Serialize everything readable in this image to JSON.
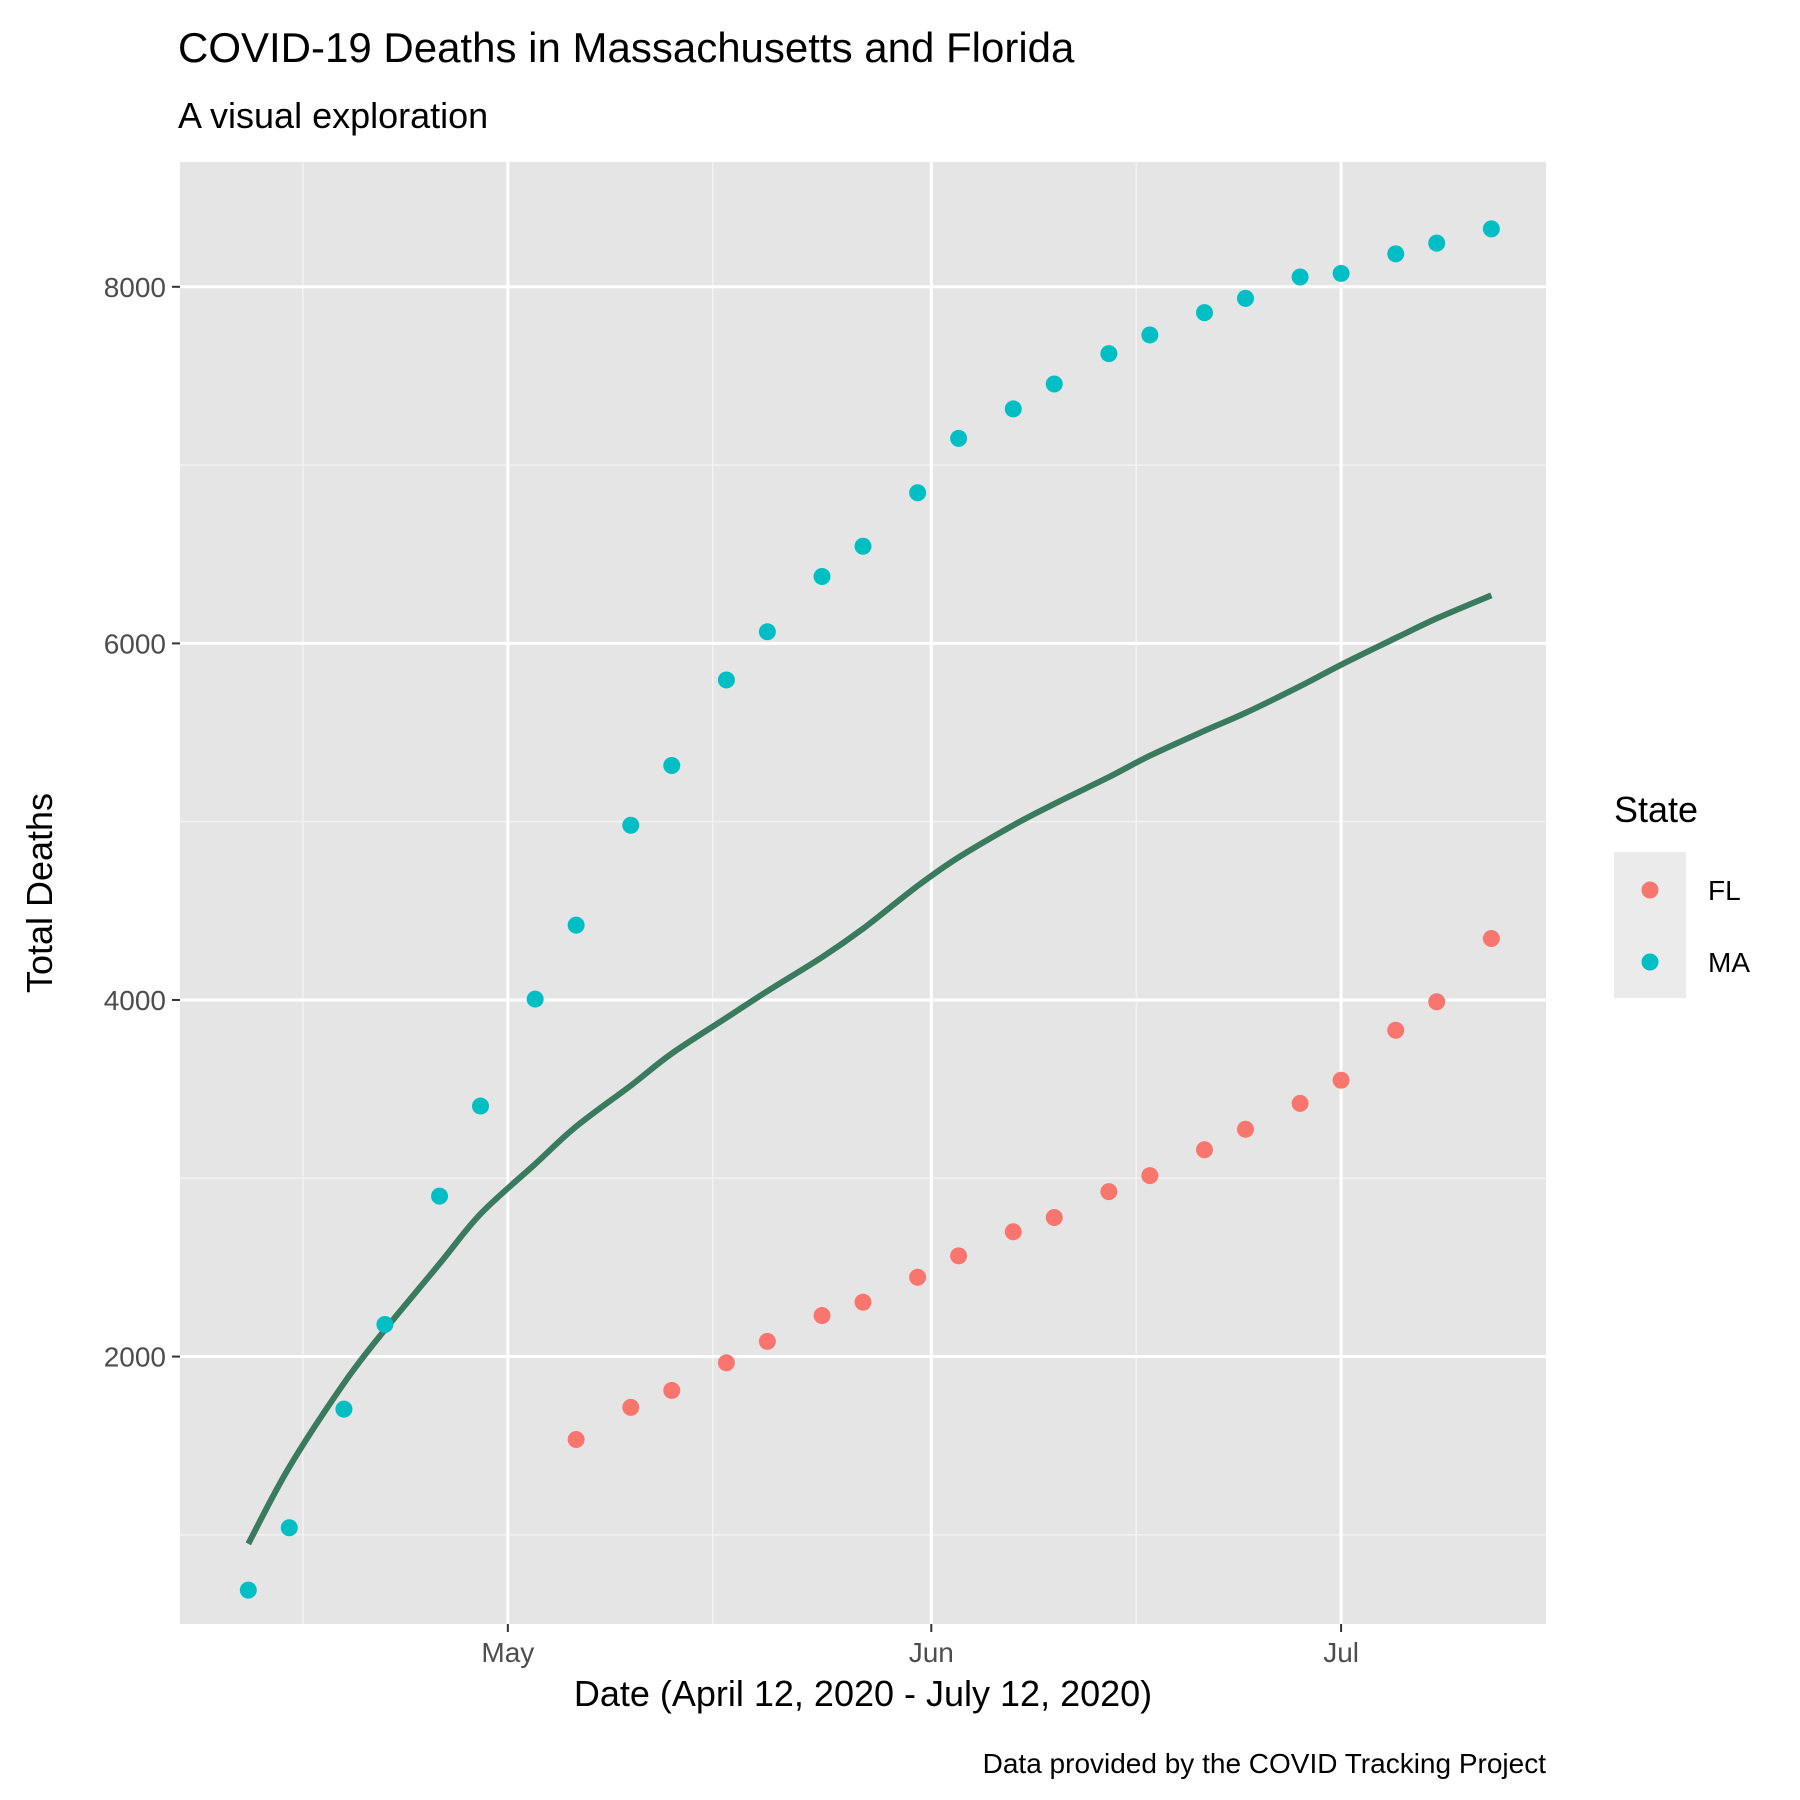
{
  "chart_data": {
    "type": "scatter",
    "title": "COVID-19 Deaths in Massachusetts and Florida",
    "subtitle": "A visual exploration",
    "xlabel": "Date (April 12, 2020 - July 12, 2020)",
    "ylabel": "Total Deaths",
    "caption": "Data provided by the COVID Tracking Project",
    "x_type": "date",
    "xlim": [
      "2020-04-07",
      "2020-07-16"
    ],
    "ylim": [
      500,
      8700
    ],
    "x_ticks": [
      {
        "date": "2020-05-01",
        "label": "May"
      },
      {
        "date": "2020-06-01",
        "label": "Jun"
      },
      {
        "date": "2020-07-01",
        "label": "Jul"
      }
    ],
    "x_minor_ticks": [
      "2020-04-16",
      "2020-05-16",
      "2020-06-16"
    ],
    "y_ticks": [
      2000,
      4000,
      6000,
      8000
    ],
    "y_minor_ticks": [
      1000,
      3000,
      5000,
      7000
    ],
    "grid": true,
    "legend": {
      "title": "State",
      "position": "right"
    },
    "series": [
      {
        "name": "FL",
        "color": "#F8766D",
        "points": [
          {
            "x": "2020-05-06",
            "y": 1535
          },
          {
            "x": "2020-05-10",
            "y": 1715
          },
          {
            "x": "2020-05-13",
            "y": 1810
          },
          {
            "x": "2020-05-17",
            "y": 1965
          },
          {
            "x": "2020-05-20",
            "y": 2085
          },
          {
            "x": "2020-05-24",
            "y": 2230
          },
          {
            "x": "2020-05-27",
            "y": 2305
          },
          {
            "x": "2020-05-31",
            "y": 2445
          },
          {
            "x": "2020-06-03",
            "y": 2565
          },
          {
            "x": "2020-06-07",
            "y": 2700
          },
          {
            "x": "2020-06-10",
            "y": 2780
          },
          {
            "x": "2020-06-14",
            "y": 2925
          },
          {
            "x": "2020-06-17",
            "y": 3015
          },
          {
            "x": "2020-06-21",
            "y": 3160
          },
          {
            "x": "2020-06-24",
            "y": 3275
          },
          {
            "x": "2020-06-28",
            "y": 3420
          },
          {
            "x": "2020-07-01",
            "y": 3550
          },
          {
            "x": "2020-07-05",
            "y": 3830
          },
          {
            "x": "2020-07-08",
            "y": 3990
          },
          {
            "x": "2020-07-12",
            "y": 4345
          }
        ]
      },
      {
        "name": "MA",
        "color": "#00BFC4",
        "points": [
          {
            "x": "2020-04-12",
            "y": 690
          },
          {
            "x": "2020-04-15",
            "y": 1040
          },
          {
            "x": "2020-04-19",
            "y": 1705
          },
          {
            "x": "2020-04-22",
            "y": 2180
          },
          {
            "x": "2020-04-26",
            "y": 2900
          },
          {
            "x": "2020-04-29",
            "y": 3405
          },
          {
            "x": "2020-05-03",
            "y": 4005
          },
          {
            "x": "2020-05-06",
            "y": 4420
          },
          {
            "x": "2020-05-10",
            "y": 4980
          },
          {
            "x": "2020-05-13",
            "y": 5315
          },
          {
            "x": "2020-05-17",
            "y": 5795
          },
          {
            "x": "2020-05-20",
            "y": 6065
          },
          {
            "x": "2020-05-24",
            "y": 6375
          },
          {
            "x": "2020-05-27",
            "y": 6545
          },
          {
            "x": "2020-05-31",
            "y": 6845
          },
          {
            "x": "2020-06-03",
            "y": 7150
          },
          {
            "x": "2020-06-07",
            "y": 7315
          },
          {
            "x": "2020-06-10",
            "y": 7455
          },
          {
            "x": "2020-06-14",
            "y": 7625
          },
          {
            "x": "2020-06-17",
            "y": 7730
          },
          {
            "x": "2020-06-21",
            "y": 7855
          },
          {
            "x": "2020-06-24",
            "y": 7935
          },
          {
            "x": "2020-06-28",
            "y": 8055
          },
          {
            "x": "2020-07-01",
            "y": 8075
          },
          {
            "x": "2020-07-05",
            "y": 8185
          },
          {
            "x": "2020-07-08",
            "y": 8245
          },
          {
            "x": "2020-07-12",
            "y": 8325
          }
        ]
      }
    ],
    "smooth_line": {
      "color": "#3A7A5F",
      "points": [
        {
          "x": "2020-04-12",
          "y": 950
        },
        {
          "x": "2020-04-15",
          "y": 1380
        },
        {
          "x": "2020-04-19",
          "y": 1850
        },
        {
          "x": "2020-04-22",
          "y": 2150
        },
        {
          "x": "2020-04-26",
          "y": 2520
        },
        {
          "x": "2020-04-29",
          "y": 2800
        },
        {
          "x": "2020-05-03",
          "y": 3080
        },
        {
          "x": "2020-05-06",
          "y": 3290
        },
        {
          "x": "2020-05-10",
          "y": 3520
        },
        {
          "x": "2020-05-13",
          "y": 3700
        },
        {
          "x": "2020-05-17",
          "y": 3900
        },
        {
          "x": "2020-05-20",
          "y": 4050
        },
        {
          "x": "2020-05-24",
          "y": 4240
        },
        {
          "x": "2020-05-27",
          "y": 4400
        },
        {
          "x": "2020-05-31",
          "y": 4640
        },
        {
          "x": "2020-06-03",
          "y": 4800
        },
        {
          "x": "2020-06-07",
          "y": 4980
        },
        {
          "x": "2020-06-10",
          "y": 5100
        },
        {
          "x": "2020-06-14",
          "y": 5250
        },
        {
          "x": "2020-06-17",
          "y": 5370
        },
        {
          "x": "2020-06-21",
          "y": 5510
        },
        {
          "x": "2020-06-24",
          "y": 5610
        },
        {
          "x": "2020-06-28",
          "y": 5760
        },
        {
          "x": "2020-07-01",
          "y": 5880
        },
        {
          "x": "2020-07-05",
          "y": 6030
        },
        {
          "x": "2020-07-08",
          "y": 6140
        },
        {
          "x": "2020-07-12",
          "y": 6270
        }
      ]
    }
  }
}
